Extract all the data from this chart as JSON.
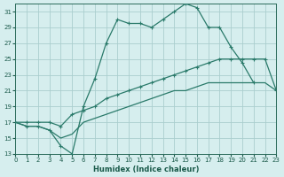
{
  "xlabel": "Humidex (Indice chaleur)",
  "bg_color": "#d6eeee",
  "grid_color": "#aacece",
  "line_color": "#2a7a6a",
  "xlim": [
    0,
    23
  ],
  "ylim": [
    13,
    32
  ],
  "yticks": [
    13,
    15,
    17,
    19,
    21,
    23,
    25,
    27,
    29,
    31
  ],
  "xticks": [
    0,
    1,
    2,
    3,
    4,
    5,
    6,
    7,
    8,
    9,
    10,
    11,
    12,
    13,
    14,
    15,
    16,
    17,
    18,
    19,
    20,
    21,
    22,
    23
  ],
  "curve1_x": [
    0,
    1,
    2,
    3,
    4,
    5,
    6,
    7,
    8,
    9,
    10,
    11,
    12,
    13,
    14,
    15,
    16,
    17,
    18,
    19,
    20,
    21
  ],
  "curve1_y": [
    17,
    16.5,
    16.5,
    16,
    14,
    13,
    19,
    22.5,
    27,
    30,
    29.5,
    29.5,
    29,
    30,
    31,
    32,
    31.5,
    29,
    29,
    26.5,
    24.5,
    22
  ],
  "curve2_x": [
    0,
    1,
    2,
    3,
    4,
    5,
    6,
    7,
    8,
    9,
    10,
    11,
    12,
    13,
    14,
    15,
    16,
    17,
    18,
    19,
    20,
    21,
    22,
    23
  ],
  "curve2_y": [
    17,
    17,
    17,
    17,
    16.5,
    18,
    18.5,
    19,
    20,
    20.5,
    21,
    21.5,
    22,
    22.5,
    23,
    23.5,
    24,
    24.5,
    25,
    25,
    25,
    25,
    25,
    21
  ],
  "curve3_x": [
    0,
    1,
    2,
    3,
    4,
    5,
    6,
    7,
    8,
    9,
    10,
    11,
    12,
    13,
    14,
    15,
    16,
    17,
    18,
    19,
    20,
    21,
    22,
    23
  ],
  "curve3_y": [
    17,
    16.5,
    16.5,
    16,
    15,
    15.5,
    17,
    17.5,
    18,
    18.5,
    19,
    19.5,
    20,
    20.5,
    21,
    21,
    21.5,
    22,
    22,
    22,
    22,
    22,
    22,
    21
  ]
}
